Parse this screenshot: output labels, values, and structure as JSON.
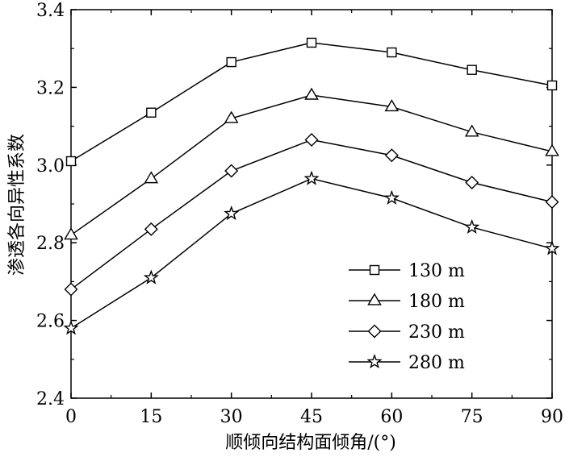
{
  "chart_data": {
    "type": "line",
    "title": "",
    "xlabel": "顺倾向结构面倾角/(°)",
    "ylabel": "渗透各向异性系数",
    "x": [
      0,
      15,
      30,
      45,
      60,
      75,
      90
    ],
    "xlim": [
      0,
      90
    ],
    "ylim": [
      2.4,
      3.4
    ],
    "xticks": [
      0,
      15,
      30,
      45,
      60,
      75,
      90
    ],
    "yticks": [
      "2.4",
      "2.6",
      "2.8",
      "3.0",
      "3.2",
      "3.4"
    ],
    "grid": false,
    "legend_position": "lower-right",
    "series": [
      {
        "name": "130 m",
        "marker": "square",
        "values": [
          3.01,
          3.135,
          3.265,
          3.315,
          3.29,
          3.245,
          3.205
        ]
      },
      {
        "name": "180 m",
        "marker": "triangle",
        "values": [
          2.82,
          2.965,
          3.12,
          3.18,
          3.15,
          3.085,
          3.035
        ]
      },
      {
        "name": "230 m",
        "marker": "diamond",
        "values": [
          2.68,
          2.835,
          2.985,
          3.065,
          3.025,
          2.955,
          2.905
        ]
      },
      {
        "name": "280 m",
        "marker": "star",
        "values": [
          2.58,
          2.71,
          2.875,
          2.965,
          2.915,
          2.84,
          2.785
        ]
      }
    ]
  }
}
